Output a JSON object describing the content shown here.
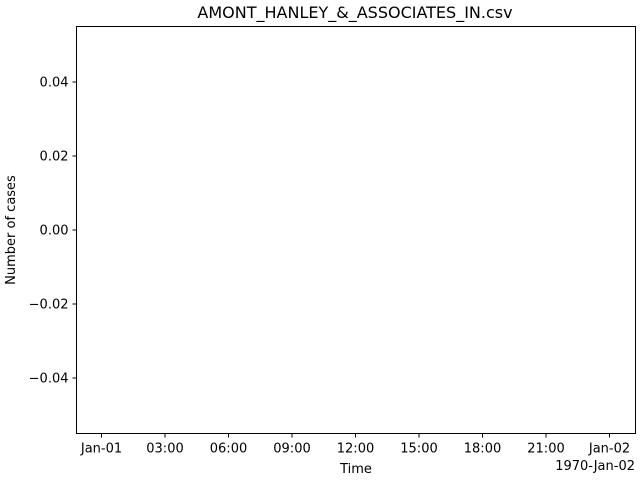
{
  "chart_data": {
    "type": "line",
    "title": "AMONT_HANLEY_&_ASSOCIATES_IN.csv",
    "xlabel": "Time",
    "ylabel": "Number of cases",
    "x_offset_label": "1970-Jan-02",
    "x_ticks": [
      "Jan-01",
      "03:00",
      "06:00",
      "09:00",
      "12:00",
      "15:00",
      "18:00",
      "21:00",
      "Jan-02"
    ],
    "y_ticks": [
      "0.04",
      "0.02",
      "0.00",
      "−0.02",
      "−0.04"
    ],
    "y_tick_values": [
      0.04,
      0.02,
      0.0,
      -0.02,
      -0.04
    ],
    "ylim": [
      -0.055,
      0.055
    ],
    "series": [],
    "grid": false,
    "legend": "none"
  }
}
